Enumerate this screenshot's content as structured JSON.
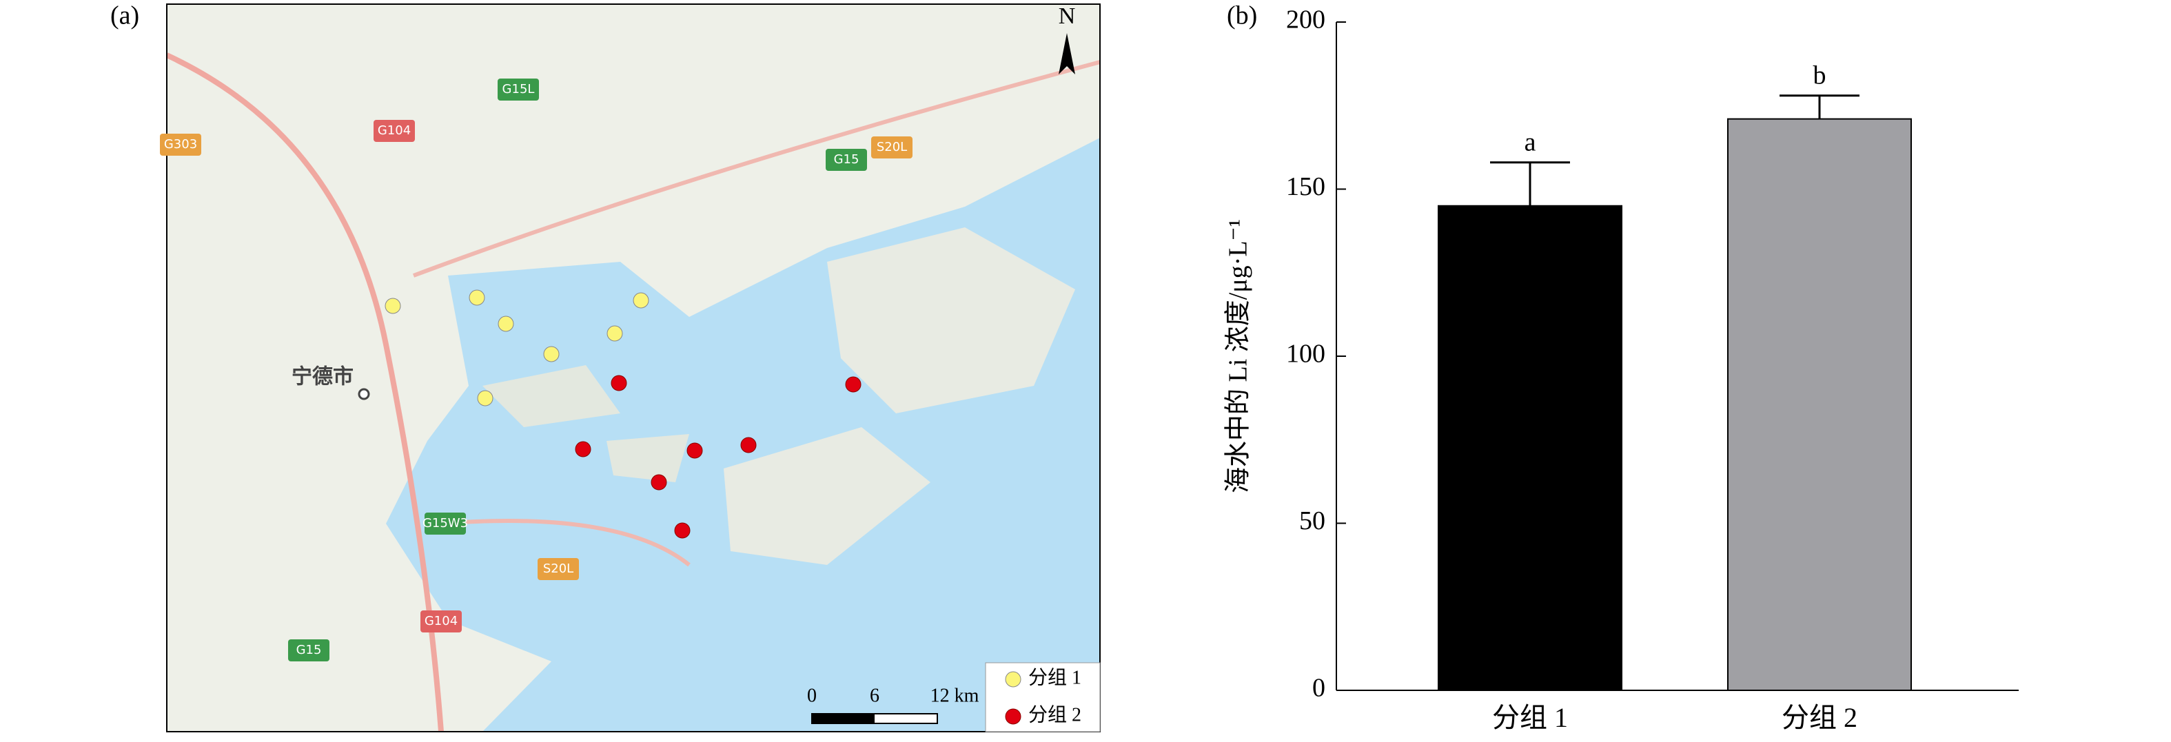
{
  "map": {
    "panel_label": "(a)",
    "north": "N",
    "city": "宁德市",
    "road_labels": [
      "G104",
      "G15",
      "S20L",
      "G15W3",
      "G104",
      "G15",
      "S20L",
      "G15L",
      "G303"
    ],
    "legend": [
      "分组 1",
      "分组 2"
    ],
    "scale_labels": [
      "0",
      "6",
      "12 km"
    ]
  },
  "chart_data": {
    "type": "bar",
    "panel_label": "(b)",
    "ylabel": "海水中的 Li 浓度/μg·L⁻¹",
    "categories": [
      "分组 1",
      "分组 2"
    ],
    "values": [
      145,
      171
    ],
    "errors": [
      13,
      7
    ],
    "annotations": [
      "a",
      "b"
    ],
    "colors": [
      "#000000",
      "#a0a0a4"
    ],
    "ylim": [
      0,
      200
    ],
    "yticks": [
      0,
      50,
      100,
      150,
      200
    ]
  }
}
